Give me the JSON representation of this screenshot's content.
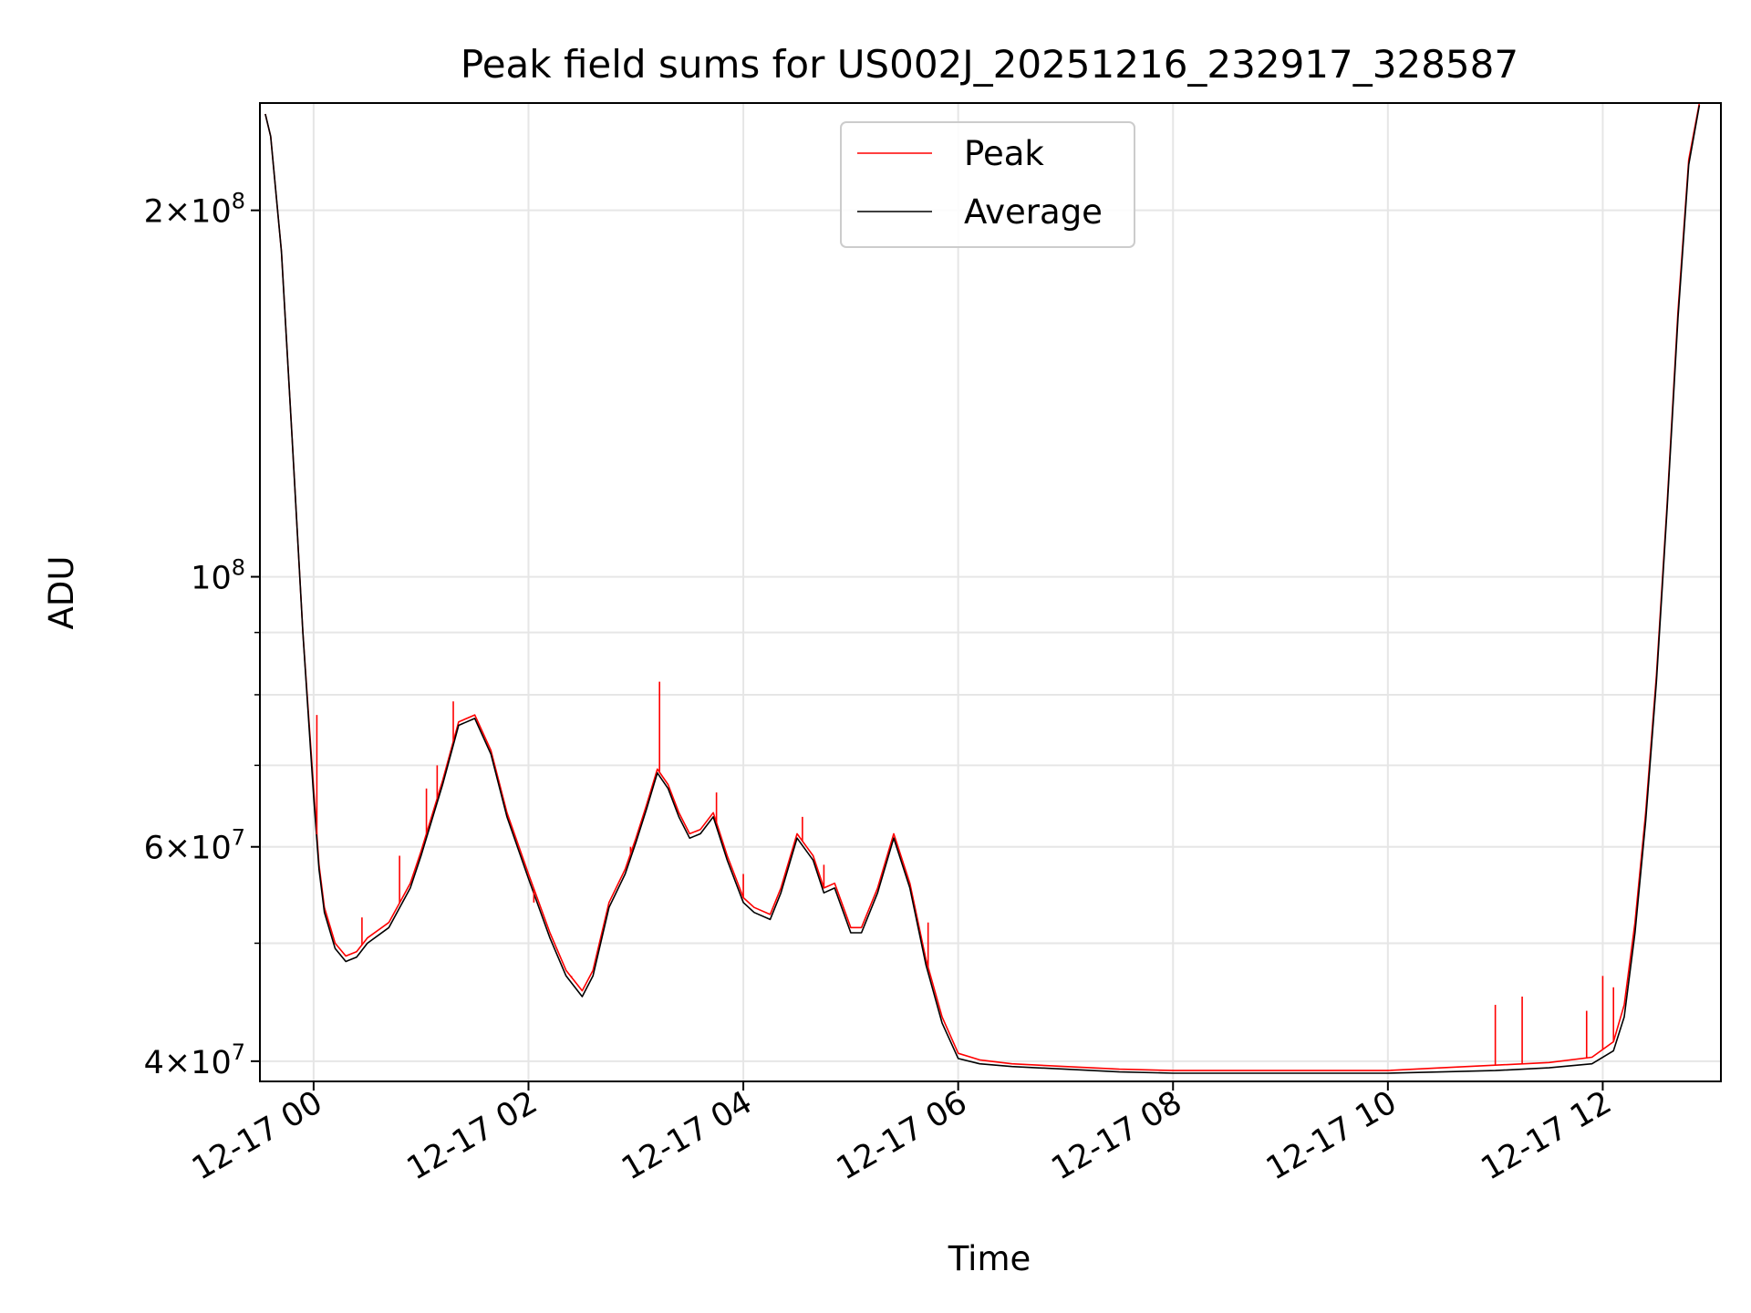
{
  "chart_data": {
    "type": "line",
    "title": "Peak field sums for US002J_20251216_232917_328587",
    "xlabel": "Time",
    "ylabel": "ADU",
    "yscale": "log",
    "ylim": [
      38500000,
      245000000
    ],
    "xlim_hours": [
      -0.5,
      13.1
    ],
    "grid": true,
    "legend_position": "upper center",
    "x_ticks": [
      {
        "hour": 0,
        "label": "12-17 00"
      },
      {
        "hour": 2,
        "label": "12-17 02"
      },
      {
        "hour": 4,
        "label": "12-17 04"
      },
      {
        "hour": 6,
        "label": "12-17 06"
      },
      {
        "hour": 8,
        "label": "12-17 08"
      },
      {
        "hour": 10,
        "label": "12-17 10"
      },
      {
        "hour": 12,
        "label": "12-17 12"
      }
    ],
    "y_ticks_major": [
      {
        "value": 40000000,
        "mantissa": "4",
        "exp": "7"
      },
      {
        "value": 60000000,
        "mantissa": "6",
        "exp": "7"
      },
      {
        "value": 100000000,
        "mantissa": "",
        "exp": "8"
      },
      {
        "value": 200000000,
        "mantissa": "2",
        "exp": "8"
      }
    ],
    "y_ticks_minor": [
      50000000,
      70000000,
      80000000,
      90000000
    ],
    "series": [
      {
        "name": "Peak",
        "color": "#ff0000",
        "x_hours": [
          -0.45,
          -0.4,
          -0.3,
          -0.2,
          -0.1,
          0.0,
          0.05,
          0.1,
          0.2,
          0.3,
          0.4,
          0.5,
          0.7,
          0.9,
          1.0,
          1.2,
          1.35,
          1.5,
          1.65,
          1.8,
          2.0,
          2.2,
          2.35,
          2.5,
          2.6,
          2.75,
          2.9,
          3.0,
          3.1,
          3.2,
          3.3,
          3.4,
          3.5,
          3.6,
          3.72,
          3.85,
          4.0,
          4.1,
          4.25,
          4.35,
          4.5,
          4.65,
          4.75,
          4.85,
          5.0,
          5.1,
          5.25,
          5.4,
          5.55,
          5.7,
          5.85,
          6.0,
          6.2,
          6.5,
          7.0,
          7.5,
          8.0,
          8.5,
          9.0,
          9.5,
          10.0,
          10.5,
          11.0,
          11.5,
          11.9,
          12.1,
          12.2,
          12.3,
          12.4,
          12.5,
          12.6,
          12.7,
          12.8,
          12.9
        ],
        "values": [
          240000000,
          230000000,
          185000000,
          130000000,
          90000000,
          67000000,
          58000000,
          53500000,
          50000000,
          48800000,
          49200000,
          50500000,
          52000000,
          56000000,
          59500000,
          68000000,
          76000000,
          77000000,
          72000000,
          64000000,
          57000000,
          51000000,
          47500000,
          45700000,
          47500000,
          54000000,
          57500000,
          61000000,
          65000000,
          69500000,
          67500000,
          64000000,
          61500000,
          62000000,
          64000000,
          59000000,
          54500000,
          53500000,
          52800000,
          55500000,
          61500000,
          59000000,
          55500000,
          56000000,
          51500000,
          51500000,
          55500000,
          61500000,
          56000000,
          48500000,
          43500000,
          40600000,
          40100000,
          39800000,
          39600000,
          39400000,
          39300000,
          39300000,
          39300000,
          39300000,
          39300000,
          39500000,
          39700000,
          39900000,
          40300000,
          41500000,
          44500000,
          52000000,
          64000000,
          83000000,
          115000000,
          165000000,
          220000000,
          245000000
        ],
        "spikes": [
          {
            "hour": 0.03,
            "value": 77000000
          },
          {
            "hour": 0.45,
            "value": 52500000
          },
          {
            "hour": 0.8,
            "value": 59000000
          },
          {
            "hour": 1.05,
            "value": 67000000
          },
          {
            "hour": 1.15,
            "value": 70000000
          },
          {
            "hour": 1.3,
            "value": 79000000
          },
          {
            "hour": 2.05,
            "value": 54000000
          },
          {
            "hour": 2.4,
            "value": 47000000
          },
          {
            "hour": 2.95,
            "value": 60000000
          },
          {
            "hour": 3.22,
            "value": 82000000
          },
          {
            "hour": 3.75,
            "value": 66500000
          },
          {
            "hour": 4.0,
            "value": 57000000
          },
          {
            "hour": 4.55,
            "value": 63500000
          },
          {
            "hour": 4.75,
            "value": 58000000
          },
          {
            "hour": 5.72,
            "value": 52000000
          },
          {
            "hour": 11.0,
            "value": 44500000
          },
          {
            "hour": 11.25,
            "value": 45200000
          },
          {
            "hour": 11.85,
            "value": 44000000
          },
          {
            "hour": 12.0,
            "value": 47000000
          },
          {
            "hour": 12.1,
            "value": 46000000
          }
        ]
      },
      {
        "name": "Average",
        "color": "#000000",
        "x_hours": [
          -0.45,
          -0.4,
          -0.3,
          -0.2,
          -0.1,
          0.0,
          0.05,
          0.1,
          0.2,
          0.3,
          0.4,
          0.5,
          0.7,
          0.9,
          1.0,
          1.2,
          1.35,
          1.5,
          1.65,
          1.8,
          2.0,
          2.2,
          2.35,
          2.5,
          2.6,
          2.75,
          2.9,
          3.0,
          3.1,
          3.2,
          3.3,
          3.4,
          3.5,
          3.6,
          3.72,
          3.85,
          4.0,
          4.1,
          4.25,
          4.35,
          4.5,
          4.65,
          4.75,
          4.85,
          5.0,
          5.1,
          5.25,
          5.4,
          5.55,
          5.7,
          5.85,
          6.0,
          6.2,
          6.5,
          7.0,
          7.5,
          8.0,
          8.5,
          9.0,
          9.5,
          10.0,
          10.5,
          11.0,
          11.5,
          11.9,
          12.1,
          12.2,
          12.3,
          12.4,
          12.5,
          12.6,
          12.7,
          12.8,
          12.9
        ],
        "values": [
          240000000,
          230000000,
          185000000,
          130000000,
          90000000,
          66000000,
          57500000,
          53000000,
          49500000,
          48300000,
          48700000,
          50000000,
          51500000,
          55500000,
          59000000,
          67500000,
          75500000,
          76500000,
          71500000,
          63500000,
          56500000,
          50500000,
          47000000,
          45200000,
          47000000,
          53500000,
          57000000,
          60500000,
          64500000,
          69000000,
          67000000,
          63500000,
          61000000,
          61500000,
          63500000,
          58500000,
          54000000,
          53000000,
          52300000,
          55000000,
          61000000,
          58500000,
          55000000,
          55500000,
          51000000,
          51000000,
          55000000,
          61000000,
          55500000,
          48000000,
          43000000,
          40200000,
          39800000,
          39600000,
          39400000,
          39200000,
          39100000,
          39100000,
          39100000,
          39100000,
          39100000,
          39200000,
          39300000,
          39500000,
          39800000,
          40800000,
          43500000,
          51000000,
          63000000,
          82000000,
          114000000,
          163000000,
          218000000,
          244000000
        ]
      }
    ]
  }
}
